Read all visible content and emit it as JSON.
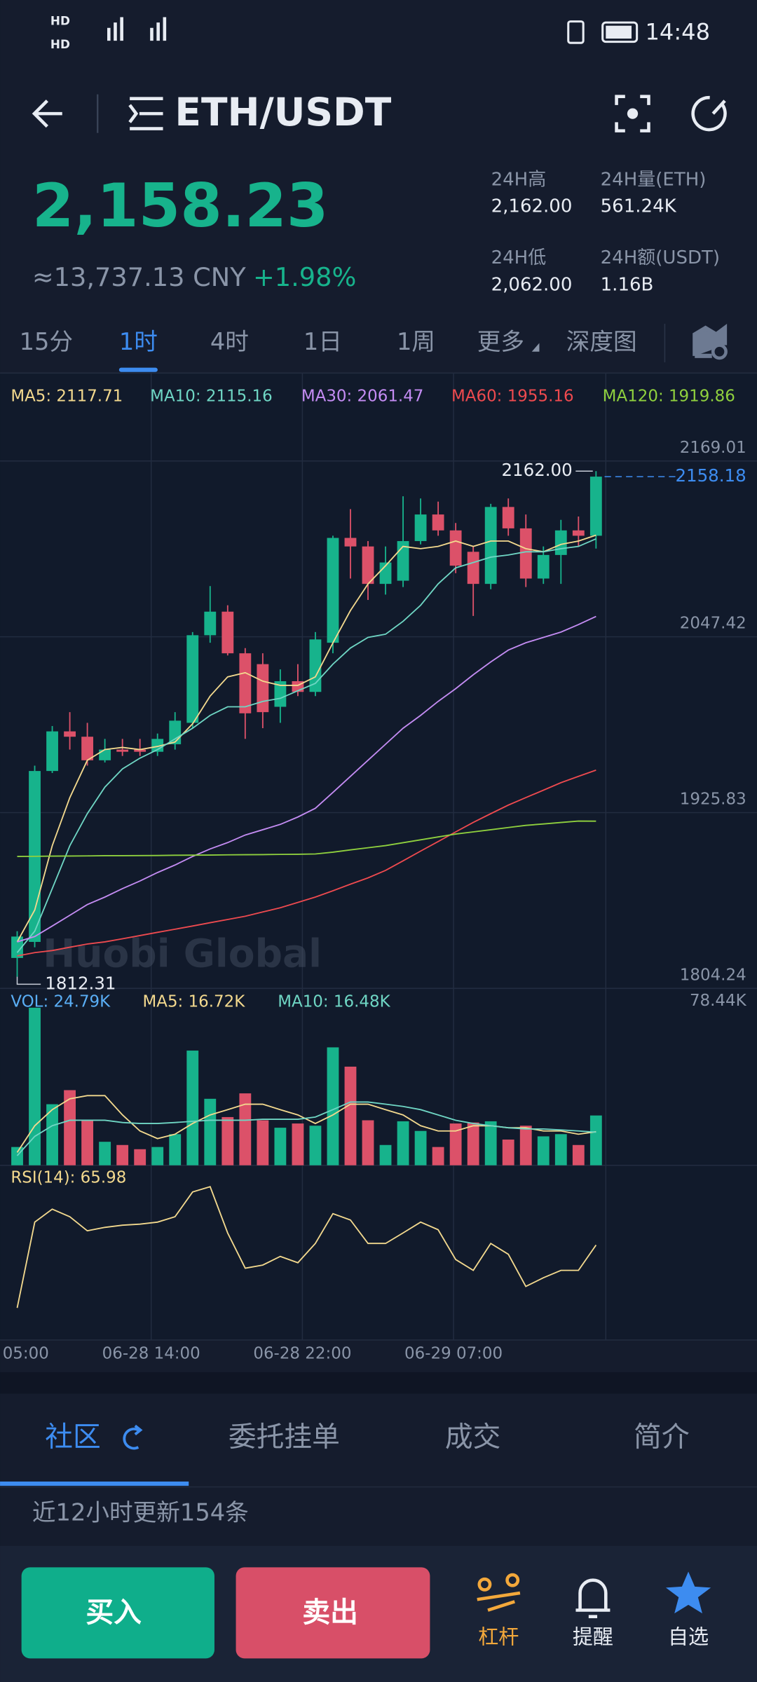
{
  "status_bar": {
    "time": "14:48"
  },
  "header": {
    "title": "ETH/USDT"
  },
  "ticker": {
    "price": "2,158.23",
    "cny": "≈13,737.13 CNY",
    "change": "+1.98%",
    "stats": [
      {
        "label": "24H高",
        "value": "2,162.00"
      },
      {
        "label": "24H量(ETH)",
        "value": "561.24K"
      },
      {
        "label": "24H低",
        "value": "2,062.00"
      },
      {
        "label": "24H额(USDT)",
        "value": "1.16B"
      }
    ]
  },
  "periods": {
    "items": [
      "15分",
      "1时",
      "4时",
      "1日",
      "1周",
      "更多",
      "深度图"
    ],
    "active": 1
  },
  "chart": {
    "type": "candlestick",
    "up_color": "#17b38c",
    "down_color": "#dc5169",
    "ylim": [
      1804.24,
      2169.01
    ],
    "yticks": [
      2169.01,
      2047.42,
      1925.83,
      1804.24
    ],
    "candles": {
      "open": [
        1825.3,
        1836.4,
        1954.6,
        1982.0,
        1978.3,
        1962.0,
        1969.4,
        1969.4,
        1967.9,
        1973.1,
        1987.9,
        2048.5,
        2064.8,
        2036.0,
        2028.5,
        1999.0,
        2016.7,
        2009.3,
        2043.3,
        2115.8,
        2109.9,
        2084.0,
        2086.2,
        2113.6,
        2132.0,
        2121.0,
        2106.2,
        2084.0,
        2137.2,
        2122.4,
        2087.7,
        2104.0,
        2121.0,
        2117.3
      ],
      "high": [
        1843.8,
        1958.3,
        1985.7,
        1995.3,
        1987.9,
        1976.8,
        1976.8,
        1976.8,
        1980.5,
        1995.3,
        2050.7,
        2082.5,
        2069.2,
        2039.6,
        2036.0,
        2024.9,
        2028.5,
        2050.7,
        2117.3,
        2135.7,
        2113.6,
        2109.9,
        2144.6,
        2143.1,
        2140.9,
        2126.1,
        2109.9,
        2139.4,
        2143.1,
        2132.0,
        2109.9,
        2128.3,
        2130.6,
        2162.0
      ],
      "low": [
        1812.31,
        1832.7,
        1953.2,
        1969.4,
        1958.3,
        1960.5,
        1965.0,
        1965.0,
        1965.0,
        1969.4,
        1984.2,
        2043.3,
        2034.5,
        1976.8,
        1984.2,
        1987.9,
        2006.4,
        2006.4,
        2036.0,
        2087.7,
        2072.9,
        2076.6,
        2081.8,
        2111.3,
        2117.3,
        2091.4,
        2061.8,
        2080.3,
        2117.3,
        2081.8,
        2084.0,
        2084.0,
        2109.9,
        2108.4
      ],
      "close": [
        1840.1,
        1954.6,
        1982.0,
        1978.3,
        1962.0,
        1969.4,
        1967.9,
        1967.9,
        1976.8,
        1989.4,
        2048.5,
        2064.8,
        2036.0,
        1994.5,
        1995.3,
        2016.7,
        2009.3,
        2045.6,
        2115.8,
        2109.9,
        2084.0,
        2098.8,
        2113.6,
        2132.0,
        2121.0,
        2096.6,
        2084.0,
        2137.2,
        2122.4,
        2087.7,
        2104.0,
        2121.0,
        2117.3,
        2158.18
      ]
    },
    "ma_lines": [
      {
        "label": "MA5: 2117.71",
        "color": "#f3d98e",
        "values": [
          1836.4,
          1858.5,
          1902.9,
          1936.2,
          1962.0,
          1969.4,
          1970.9,
          1969.4,
          1971.6,
          1974.6,
          1987.2,
          2006.4,
          2019.7,
          2022.6,
          2016.7,
          2013.8,
          2013.8,
          2019.7,
          2043.3,
          2065.5,
          2084.0,
          2096.6,
          2109.9,
          2108.4,
          2109.9,
          2113.6,
          2109.9,
          2113.6,
          2113.6,
          2108.4,
          2106.2,
          2111.3,
          2113.6,
          2117.7
        ]
      },
      {
        "label": "MA10: 2115.16",
        "color": "#6fd6c4",
        "values": [
          1829.0,
          1843.8,
          1873.3,
          1902.9,
          1925.1,
          1943.5,
          1956.1,
          1963.5,
          1969.4,
          1976.8,
          1984.2,
          1993.1,
          1999.0,
          1999.0,
          2002.7,
          2004.9,
          2010.1,
          2015.2,
          2028.5,
          2039.6,
          2047.0,
          2049.2,
          2058.1,
          2069.2,
          2084.0,
          2095.1,
          2098.8,
          2102.5,
          2104.0,
          2106.2,
          2106.2,
          2108.4,
          2109.9,
          2115.2
        ]
      },
      {
        "label": "MA30: 2061.47",
        "color": "#c48cf3",
        "values": [
          1836.4,
          1840.1,
          1847.4,
          1854.8,
          1862.2,
          1867.4,
          1873.3,
          1878.5,
          1884.4,
          1889.6,
          1895.5,
          1900.7,
          1905.1,
          1910.3,
          1914.0,
          1917.7,
          1922.8,
          1928.8,
          1939.8,
          1950.9,
          1962.0,
          1973.1,
          1984.2,
          1993.1,
          2002.7,
          2011.5,
          2021.2,
          2030.0,
          2038.2,
          2043.3,
          2047.0,
          2050.7,
          2055.9,
          2061.5
        ]
      },
      {
        "label": "MA60: 1955.16",
        "color": "#ee4a4f",
        "values": [
          1826.7,
          1829.0,
          1830.4,
          1832.7,
          1834.9,
          1836.4,
          1838.6,
          1840.8,
          1843.0,
          1845.2,
          1847.4,
          1849.7,
          1851.9,
          1854.1,
          1857.1,
          1860.0,
          1863.7,
          1867.4,
          1871.8,
          1876.3,
          1880.7,
          1885.9,
          1892.5,
          1899.2,
          1905.8,
          1912.5,
          1919.1,
          1925.1,
          1931.0,
          1936.2,
          1941.3,
          1946.5,
          1950.9,
          1955.2
        ]
      },
      {
        "label": "MA120: 1919.86",
        "color": "#8fd03e",
        "values": [
          1895.5,
          1895.6,
          1895.7,
          1895.8,
          1895.9,
          1896.0,
          1896.0,
          1896.1,
          1896.2,
          1896.3,
          1896.4,
          1896.5,
          1896.6,
          1896.7,
          1896.8,
          1896.9,
          1897.0,
          1897.2,
          1898.5,
          1900.0,
          1901.5,
          1903.0,
          1905.0,
          1907.0,
          1909.0,
          1911.0,
          1912.5,
          1914.0,
          1915.5,
          1917.0,
          1918.0,
          1919.0,
          1920.0,
          1919.9
        ]
      }
    ],
    "high_label": "2162.00",
    "low_label": "1812.31",
    "last_price_label": "2158.18",
    "watermark": "Huobi Global"
  },
  "volume": {
    "label": "VOL: 24.79K",
    "color": "#5aaef5",
    "ylim": [
      0,
      78.44
    ],
    "yticks": [
      {
        "value": 78.44,
        "label": "78.44K"
      }
    ],
    "values": [
      9.1,
      78.44,
      30.4,
      37.4,
      22.4,
      11.7,
      10.1,
      8.0,
      9.1,
      15.5,
      57.1,
      33.1,
      24.0,
      35.8,
      22.4,
      18.7,
      20.8,
      19.7,
      58.7,
      49.1,
      22.4,
      10.1,
      21.9,
      17.1,
      9.1,
      20.8,
      21.3,
      21.9,
      12.8,
      19.7,
      14.4,
      15.5,
      10.1,
      24.79
    ],
    "ma_lines": [
      {
        "label": "MA5: 16.72K",
        "color": "#f3d98e",
        "values": [
          6.4,
          19.7,
          27.7,
          33.1,
          34.7,
          34.7,
          25.1,
          17.1,
          13.3,
          15.5,
          20.8,
          25.1,
          27.7,
          30.4,
          30.4,
          27.7,
          25.1,
          20.8,
          25.1,
          30.4,
          30.4,
          27.7,
          25.1,
          19.7,
          17.1,
          17.1,
          19.7,
          19.7,
          18.7,
          18.7,
          17.1,
          17.1,
          15.5,
          16.72
        ]
      },
      {
        "label": "MA10: 16.48K",
        "color": "#6fd6c4",
        "values": [
          4.8,
          14.4,
          19.7,
          22.4,
          22.4,
          22.4,
          21.3,
          20.8,
          20.8,
          21.3,
          21.9,
          22.4,
          22.4,
          22.4,
          22.9,
          22.9,
          22.9,
          24.0,
          27.7,
          31.5,
          31.5,
          30.4,
          29.3,
          27.7,
          25.1,
          22.4,
          20.8,
          19.7,
          18.7,
          18.1,
          18.1,
          17.6,
          17.1,
          16.48
        ]
      }
    ]
  },
  "rsi": {
    "label": "RSI(14): 65.98",
    "color": "#f3d98e",
    "ylim": [
      30,
      95
    ],
    "values": [
      42.2,
      74.7,
      79.6,
      76.7,
      71.4,
      72.7,
      73.5,
      73.9,
      74.7,
      76.7,
      86.1,
      88.1,
      70.6,
      57.2,
      58.4,
      61.7,
      59.3,
      66.6,
      77.9,
      75.5,
      66.6,
      66.6,
      70.6,
      74.7,
      71.8,
      60.5,
      56.4,
      66.6,
      62.5,
      50.3,
      53.6,
      56.4,
      56.4,
      65.98
    ]
  },
  "time_labels": [
    "05:00",
    "06-28 14:00",
    "06-28 22:00",
    "06-29 07:00"
  ],
  "bottom_tabs": {
    "items": [
      "社区",
      "委托挂单",
      "成交",
      "简介"
    ],
    "active": 0
  },
  "notice": "近12小时更新154条",
  "actions": {
    "buy": "买入",
    "sell": "卖出",
    "nav": [
      "杠杆",
      "提醒",
      "自选"
    ]
  }
}
